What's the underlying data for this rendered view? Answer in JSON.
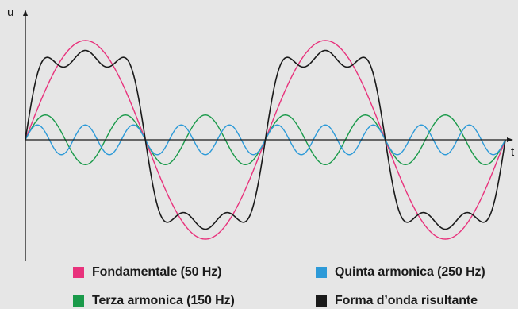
{
  "chart_data": {
    "type": "line",
    "ylabel": "u",
    "xlabel": "t",
    "x_range": [
      0,
      2
    ],
    "x_unit_note": "cycles of the fundamental",
    "ylim": [
      -1.1,
      1.1
    ],
    "grid": false,
    "legend_position": "bottom",
    "series": [
      {
        "name": "Fondamentale (50 Hz)",
        "color": "#e8327c",
        "harmonic": 1,
        "amplitude": 1.0
      },
      {
        "name": "Terza armonica (150 Hz)",
        "color": "#1a9a4a",
        "harmonic": 3,
        "amplitude": 0.25
      },
      {
        "name": "Quinta armonica (250 Hz)",
        "color": "#2d9ad8",
        "harmonic": 5,
        "amplitude": 0.15
      },
      {
        "name": "Forma d’onda risultante",
        "color": "#1a1a1a",
        "components": [
          {
            "harmonic": 1,
            "amplitude": 1.0
          },
          {
            "harmonic": 3,
            "amplitude": 0.25
          },
          {
            "harmonic": 5,
            "amplitude": 0.15
          }
        ]
      }
    ]
  }
}
